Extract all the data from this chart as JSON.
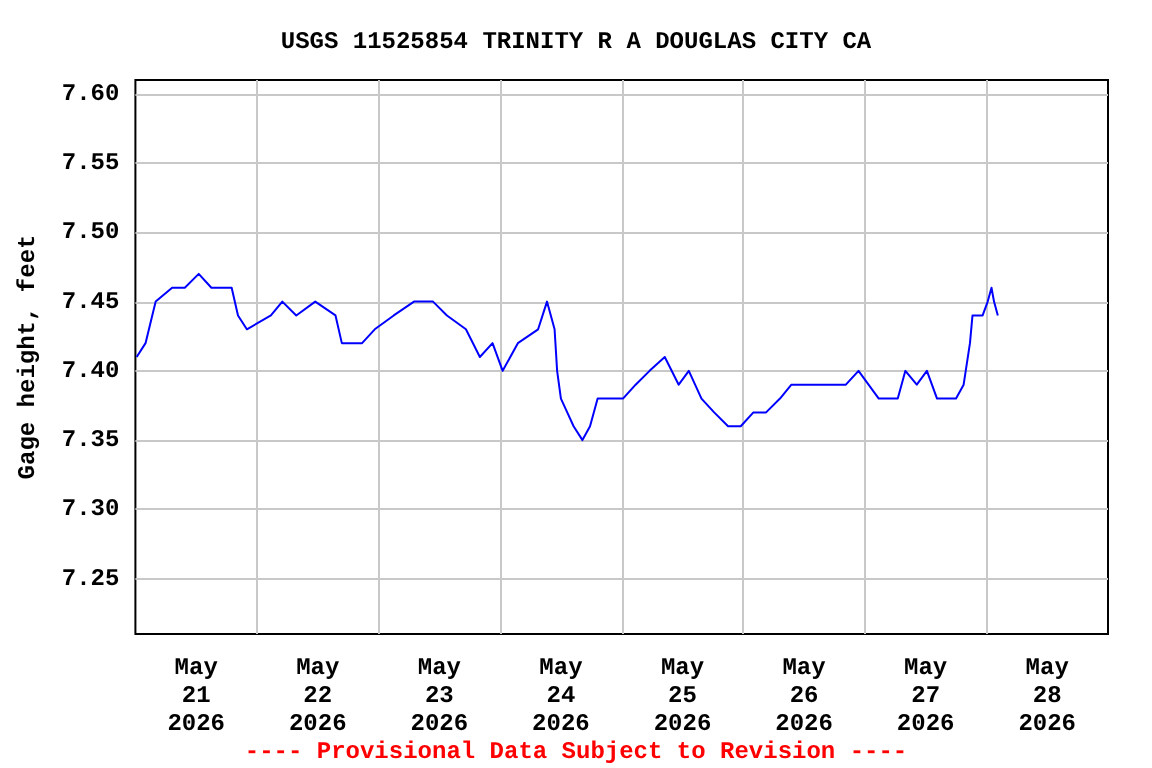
{
  "chart_data": {
    "type": "line",
    "title": "USGS 11525854 TRINITY R A DOUGLAS CITY CA",
    "ylabel": "Gage height, feet",
    "annotations": [
      "---- Provisional Data Subject to Revision ----"
    ],
    "x": [
      "2026-05-21T00:15",
      "2026-05-21T02:00",
      "2026-05-21T04:00",
      "2026-05-21T07:15",
      "2026-05-21T09:45",
      "2026-05-21T12:30",
      "2026-05-21T15:00",
      "2026-05-21T19:00",
      "2026-05-21T20:15",
      "2026-05-21T22:00",
      "2026-05-22T02:45",
      "2026-05-22T05:00",
      "2026-05-22T07:45",
      "2026-05-22T11:30",
      "2026-05-22T15:30",
      "2026-05-22T16:45",
      "2026-05-22T20:45",
      "2026-05-22T23:15",
      "2026-05-23T03:00",
      "2026-05-23T07:00",
      "2026-05-23T10:45",
      "2026-05-23T13:30",
      "2026-05-23T17:15",
      "2026-05-23T20:00",
      "2026-05-23T22:30",
      "2026-05-24T00:30",
      "2026-05-24T03:30",
      "2026-05-24T07:30",
      "2026-05-24T09:15",
      "2026-05-24T10:45",
      "2026-05-24T11:15",
      "2026-05-24T12:00",
      "2026-05-24T13:15",
      "2026-05-24T14:30",
      "2026-05-24T16:15",
      "2026-05-24T17:45",
      "2026-05-24T19:15",
      "2026-05-24T21:30",
      "2026-05-25T00:15",
      "2026-05-25T02:45",
      "2026-05-25T05:30",
      "2026-05-25T08:30",
      "2026-05-25T11:15",
      "2026-05-25T13:15",
      "2026-05-25T15:45",
      "2026-05-25T18:15",
      "2026-05-25T21:00",
      "2026-05-25T23:30",
      "2026-05-26T02:00",
      "2026-05-26T04:30",
      "2026-05-26T07:15",
      "2026-05-26T09:30",
      "2026-05-26T15:00",
      "2026-05-26T20:15",
      "2026-05-26T22:45",
      "2026-05-27T02:45",
      "2026-05-27T06:30",
      "2026-05-27T08:00",
      "2026-05-27T10:15",
      "2026-05-27T12:15",
      "2026-05-27T14:15",
      "2026-05-27T18:00",
      "2026-05-27T19:30",
      "2026-05-27T20:45",
      "2026-05-27T21:15",
      "2026-05-27T23:15",
      "2026-05-28T00:15",
      "2026-05-28T01:00",
      "2026-05-28T01:30",
      "2026-05-28T02:15"
    ],
    "series": [
      {
        "color": "#0000ff",
        "values": [
          7.41,
          7.42,
          7.45,
          7.46,
          7.46,
          7.47,
          7.46,
          7.46,
          7.44,
          7.43,
          7.44,
          7.45,
          7.44,
          7.45,
          7.44,
          7.42,
          7.42,
          7.43,
          7.44,
          7.45,
          7.45,
          7.44,
          7.43,
          7.41,
          7.42,
          7.4,
          7.42,
          7.43,
          7.45,
          7.43,
          7.4,
          7.38,
          7.37,
          7.36,
          7.35,
          7.36,
          7.38,
          7.38,
          7.38,
          7.39,
          7.4,
          7.41,
          7.39,
          7.4,
          7.38,
          7.37,
          7.36,
          7.36,
          7.37,
          7.37,
          7.38,
          7.39,
          7.39,
          7.39,
          7.4,
          7.38,
          7.38,
          7.4,
          7.39,
          7.4,
          7.38,
          7.38,
          7.39,
          7.42,
          7.44,
          7.44,
          7.45,
          7.46,
          7.45,
          7.44
        ]
      }
    ],
    "xlim": [
      "2026-05-21T00:00",
      "2026-05-29T00:00"
    ],
    "xticks": [
      {
        "value": "2026-05-21T12:00",
        "label": "May\n21\n2026"
      },
      {
        "value": "2026-05-22T00:00",
        "label": null
      },
      {
        "value": "2026-05-22T12:00",
        "label": "May\n22\n2026"
      },
      {
        "value": "2026-05-23T00:00",
        "label": null
      },
      {
        "value": "2026-05-23T12:00",
        "label": "May\n23\n2026"
      },
      {
        "value": "2026-05-24T00:00",
        "label": null
      },
      {
        "value": "2026-05-24T12:00",
        "label": "May\n24\n2026"
      },
      {
        "value": "2026-05-25T00:00",
        "label": null
      },
      {
        "value": "2026-05-25T12:00",
        "label": "May\n25\n2026"
      },
      {
        "value": "2026-05-26T00:00",
        "label": null
      },
      {
        "value": "2026-05-26T12:00",
        "label": "May\n26\n2026"
      },
      {
        "value": "2026-05-27T00:00",
        "label": null
      },
      {
        "value": "2026-05-27T12:00",
        "label": "May\n27\n2026"
      },
      {
        "value": "2026-05-28T00:00",
        "label": null
      },
      {
        "value": "2026-05-28T12:00",
        "label": "May\n28\n2026"
      }
    ],
    "ylim": [
      7.21,
      7.61
    ],
    "yticks": [
      {
        "value": 7.25,
        "label": "7.25"
      },
      {
        "value": 7.3,
        "label": "7.30"
      },
      {
        "value": 7.35,
        "label": "7.35"
      },
      {
        "value": 7.4,
        "label": "7.40"
      },
      {
        "value": 7.45,
        "label": "7.45"
      },
      {
        "value": 7.5,
        "label": "7.50"
      },
      {
        "value": 7.55,
        "label": "7.55"
      },
      {
        "value": 7.6,
        "label": "7.60"
      }
    ],
    "grid": true,
    "marker": "none",
    "line_style": "solid"
  }
}
